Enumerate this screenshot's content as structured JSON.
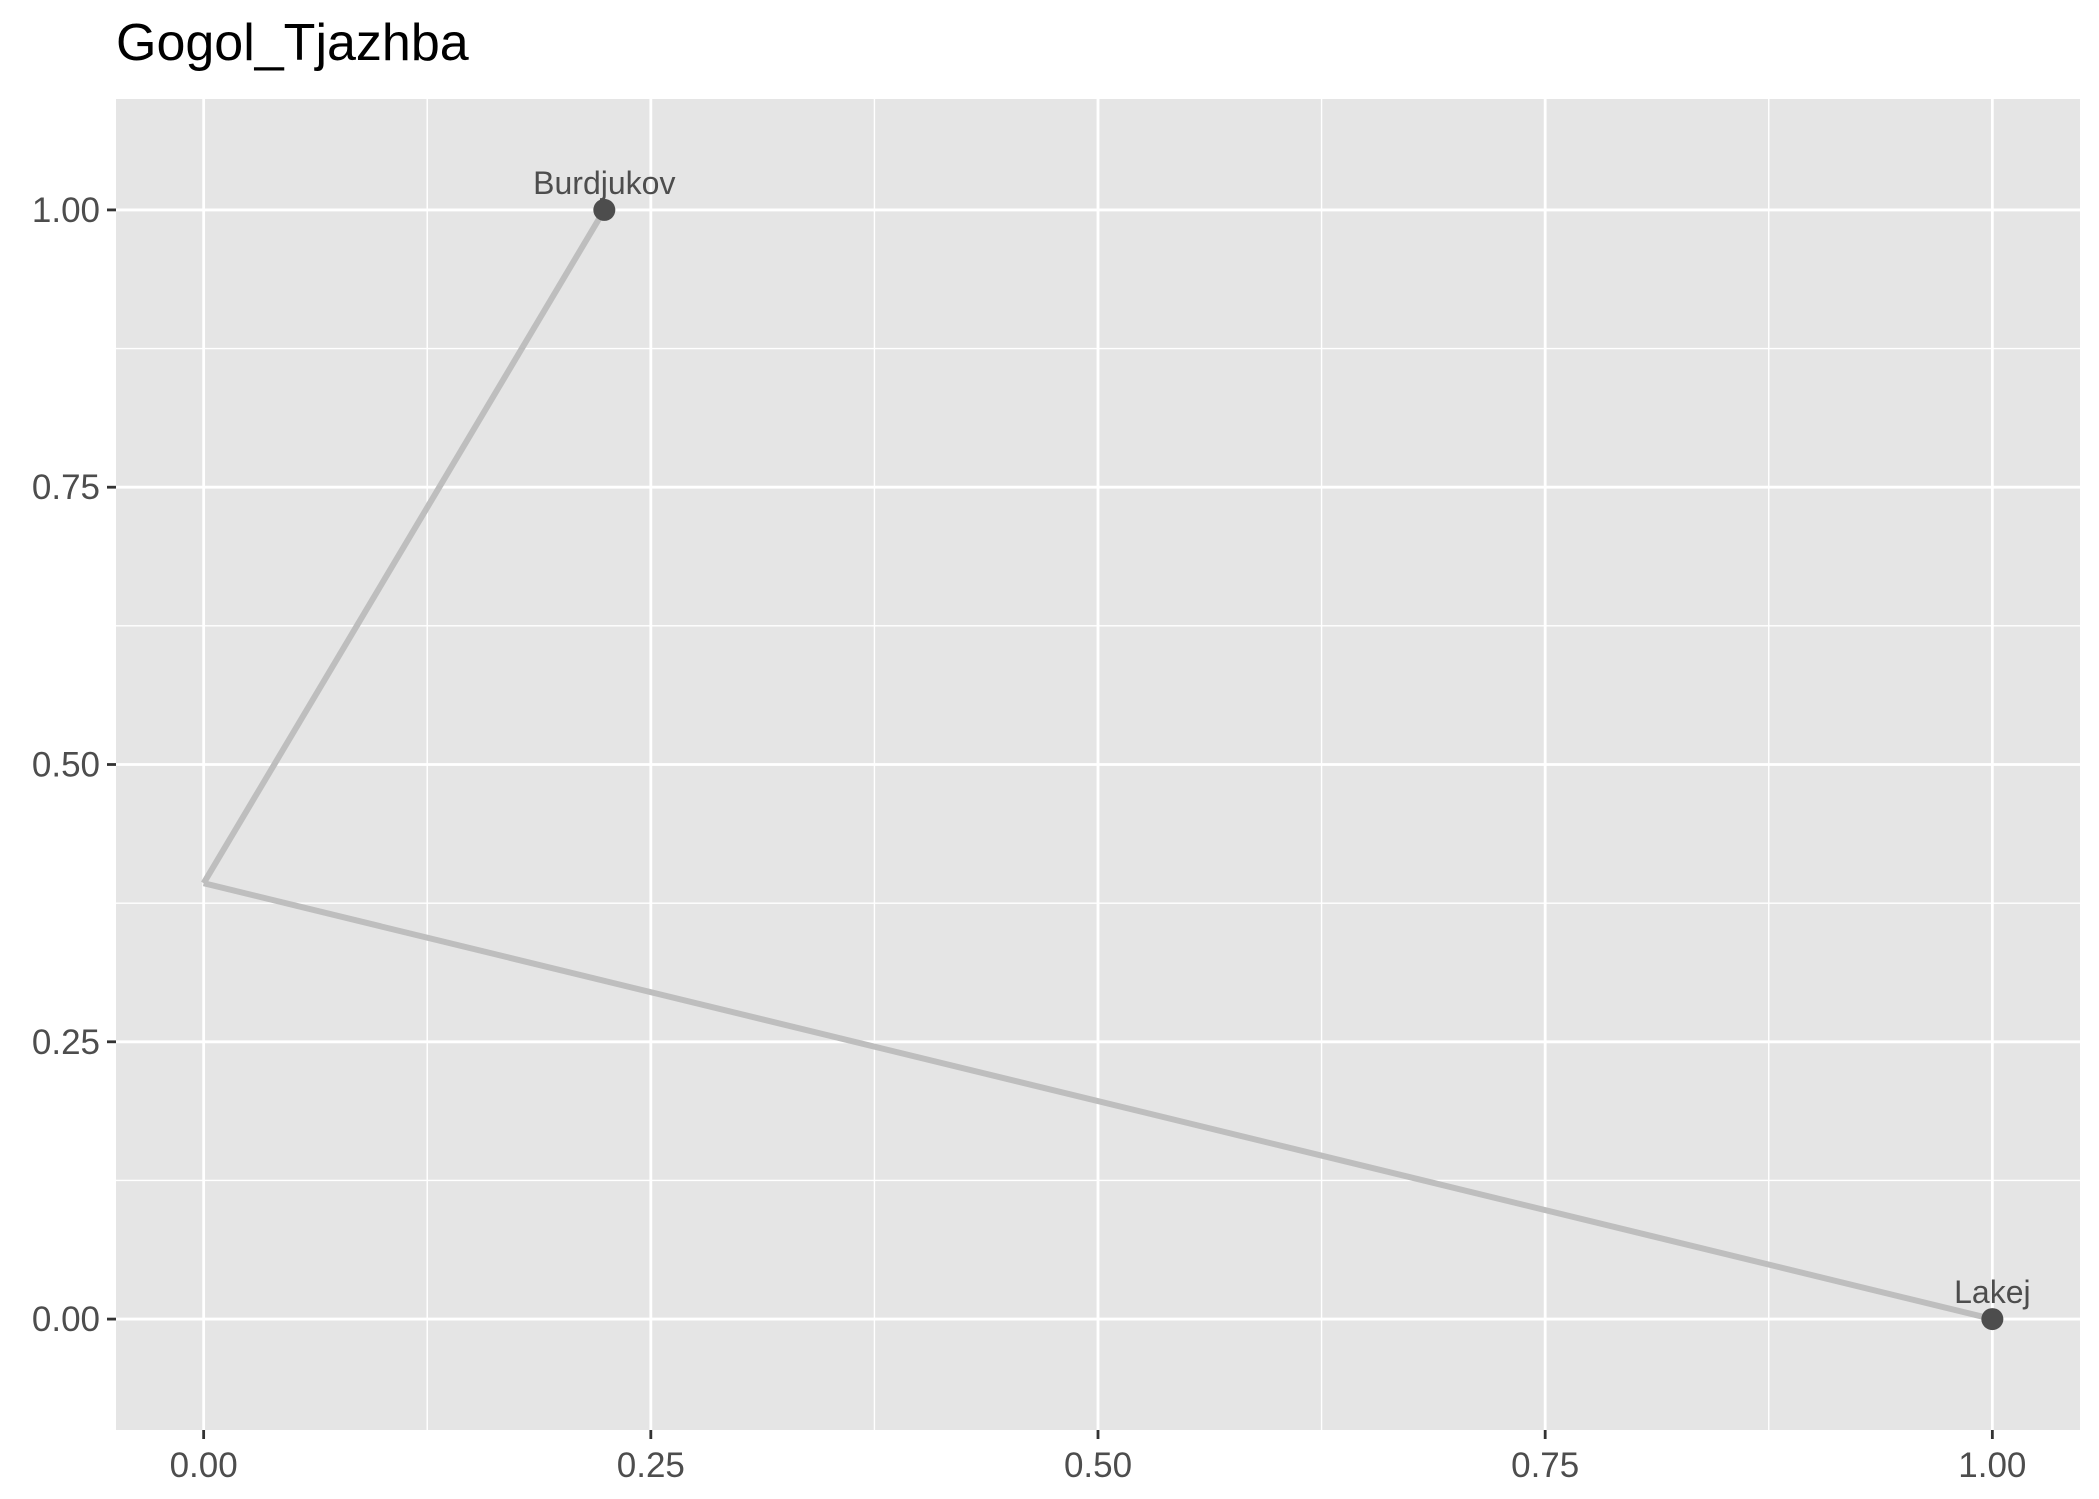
{
  "chart_data": {
    "type": "line",
    "title": "Gogol_Tjazhba",
    "xlabel": "",
    "ylabel": "",
    "xlim": [
      -0.049,
      1.049
    ],
    "ylim": [
      -0.1,
      1.1
    ],
    "x_ticks": [
      0,
      0.25,
      0.5,
      0.75,
      1.0
    ],
    "x_tick_labels": [
      "0.00",
      "0.25",
      "0.50",
      "0.75",
      "1.00"
    ],
    "y_ticks": [
      0,
      0.25,
      0.5,
      0.75,
      1.0
    ],
    "y_tick_labels": [
      "0.00",
      "0.25",
      "0.50",
      "0.75",
      "1.00"
    ],
    "x_minor": [
      0.125,
      0.375,
      0.625,
      0.875
    ],
    "y_minor": [
      0.125,
      0.375,
      0.625,
      0.875
    ],
    "grid": true,
    "edges": [
      {
        "from": [
          0.0,
          0.393
        ],
        "to": [
          0.224,
          1.0
        ]
      },
      {
        "from": [
          0.0,
          0.393
        ],
        "to": [
          1.0,
          0.0
        ]
      }
    ],
    "points": [
      {
        "label": "Burdjukov",
        "x": 0.224,
        "y": 1.0
      },
      {
        "label": "Lakej",
        "x": 1.0,
        "y": 0.0
      }
    ],
    "colors": {
      "panel_background": "#e5e5e5",
      "grid": "#ffffff",
      "edge": "#bebebe",
      "point": "#4d4d4d",
      "tick": "#333333"
    }
  }
}
